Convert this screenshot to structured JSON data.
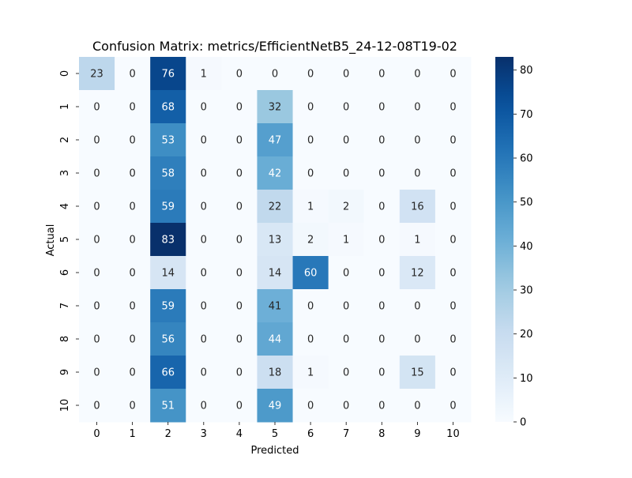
{
  "chart_data": {
    "type": "heatmap",
    "title": "Confusion Matrix: metrics/EfficientNetB5_24-12-08T19-02",
    "xlabel": "Predicted",
    "ylabel": "Actual",
    "x_tick_labels": [
      "0",
      "1",
      "2",
      "3",
      "4",
      "5",
      "6",
      "7",
      "8",
      "9",
      "10"
    ],
    "y_tick_labels": [
      "0",
      "1",
      "2",
      "3",
      "4",
      "5",
      "6",
      "7",
      "8",
      "9",
      "10"
    ],
    "values": [
      [
        23,
        0,
        76,
        1,
        0,
        0,
        0,
        0,
        0,
        0,
        0
      ],
      [
        0,
        0,
        68,
        0,
        0,
        32,
        0,
        0,
        0,
        0,
        0
      ],
      [
        0,
        0,
        53,
        0,
        0,
        47,
        0,
        0,
        0,
        0,
        0
      ],
      [
        0,
        0,
        58,
        0,
        0,
        42,
        0,
        0,
        0,
        0,
        0
      ],
      [
        0,
        0,
        59,
        0,
        0,
        22,
        1,
        2,
        0,
        16,
        0
      ],
      [
        0,
        0,
        83,
        0,
        0,
        13,
        2,
        1,
        0,
        1,
        0
      ],
      [
        0,
        0,
        14,
        0,
        0,
        14,
        60,
        0,
        0,
        12,
        0
      ],
      [
        0,
        0,
        59,
        0,
        0,
        41,
        0,
        0,
        0,
        0,
        0
      ],
      [
        0,
        0,
        56,
        0,
        0,
        44,
        0,
        0,
        0,
        0,
        0
      ],
      [
        0,
        0,
        66,
        0,
        0,
        18,
        1,
        0,
        0,
        15,
        0
      ],
      [
        0,
        0,
        51,
        0,
        0,
        49,
        0,
        0,
        0,
        0,
        0
      ]
    ],
    "colormap": "Blues",
    "color_range": [
      0,
      83
    ],
    "colorbar_ticks": [
      0,
      10,
      20,
      30,
      40,
      50,
      60,
      70,
      80
    ],
    "annotations": true,
    "grid": false
  }
}
